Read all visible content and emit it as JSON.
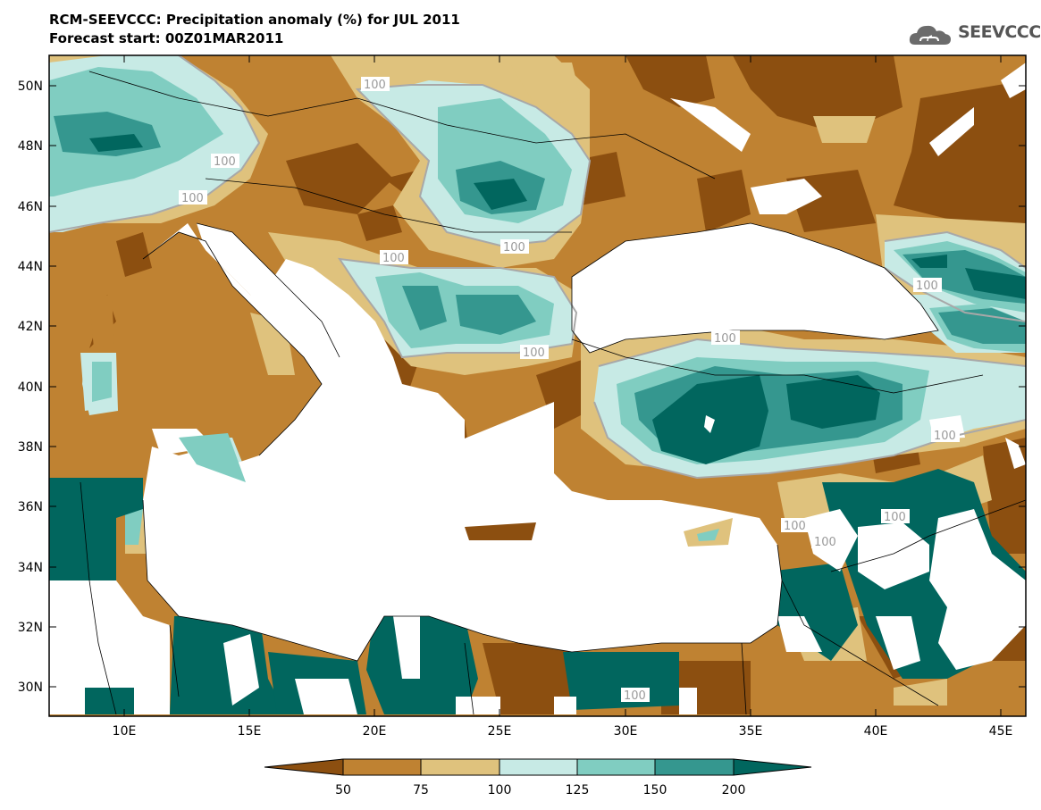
{
  "header": {
    "title": "RCM-SEEVCCC: Precipitation anomaly (%) for JUL 2011",
    "subtitle": "Forecast start: 00Z01MAR2011"
  },
  "logo": {
    "text": "SEEVCCC",
    "icon": "cloud-icon"
  },
  "map": {
    "lon_range": [
      7,
      46
    ],
    "lat_range": [
      29,
      51
    ],
    "lon_ticks": [
      "10E",
      "15E",
      "20E",
      "25E",
      "30E",
      "35E",
      "40E",
      "45E"
    ],
    "lat_ticks": [
      "50N",
      "48N",
      "46N",
      "44N",
      "42N",
      "40N",
      "38N",
      "36N",
      "34N",
      "32N",
      "30N"
    ],
    "contour_value": "100"
  },
  "colorbar": {
    "labels": [
      "50",
      "75",
      "100",
      "125",
      "150",
      "200"
    ],
    "colors": [
      "#8c4f10",
      "#bf8232",
      "#dfc27d",
      "#c7eae5",
      "#80cdc1",
      "#35978f",
      "#01665e"
    ]
  }
}
